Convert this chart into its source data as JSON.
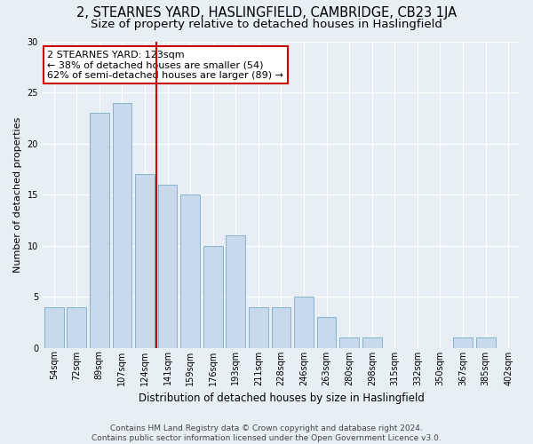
{
  "title": "2, STEARNES YARD, HASLINGFIELD, CAMBRIDGE, CB23 1JA",
  "subtitle": "Size of property relative to detached houses in Haslingfield",
  "xlabel": "Distribution of detached houses by size in Haslingfield",
  "ylabel": "Number of detached properties",
  "categories": [
    "54sqm",
    "72sqm",
    "89sqm",
    "107sqm",
    "124sqm",
    "141sqm",
    "159sqm",
    "176sqm",
    "193sqm",
    "211sqm",
    "228sqm",
    "246sqm",
    "263sqm",
    "280sqm",
    "298sqm",
    "315sqm",
    "332sqm",
    "350sqm",
    "367sqm",
    "385sqm",
    "402sqm"
  ],
  "values": [
    4,
    4,
    23,
    24,
    17,
    16,
    15,
    10,
    11,
    4,
    4,
    5,
    3,
    1,
    1,
    0,
    0,
    0,
    1,
    1,
    0
  ],
  "bar_color": "#c9d9ec",
  "bar_edge_color": "#7aaac8",
  "annotation_line1": "2 STEARNES YARD: 123sqm",
  "annotation_line2": "← 38% of detached houses are smaller (54)",
  "annotation_line3": "62% of semi-detached houses are larger (89) →",
  "annotation_box_color": "#ffffff",
  "annotation_border_color": "#cc0000",
  "vline_color": "#cc0000",
  "vline_x_index": 4,
  "ylim": [
    0,
    30
  ],
  "yticks": [
    0,
    5,
    10,
    15,
    20,
    25,
    30
  ],
  "background_color": "#e8eef5",
  "grid_color": "#ffffff",
  "footer_text": "Contains HM Land Registry data © Crown copyright and database right 2024.\nContains public sector information licensed under the Open Government Licence v3.0.",
  "title_fontsize": 10.5,
  "subtitle_fontsize": 9.5,
  "xlabel_fontsize": 8.5,
  "ylabel_fontsize": 8,
  "tick_fontsize": 7,
  "annotation_fontsize": 8,
  "footer_fontsize": 6.5
}
